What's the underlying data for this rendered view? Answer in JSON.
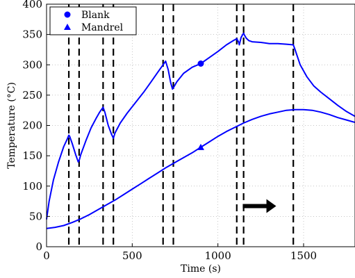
{
  "chart_data": {
    "type": "line",
    "title": "",
    "xlabel": "Time (s)",
    "ylabel": "Temperature (°C)",
    "xlim": [
      0,
      1800
    ],
    "ylim": [
      0,
      400
    ],
    "xticks": [
      0,
      500,
      1000,
      1500
    ],
    "yticks": [
      0,
      50,
      100,
      150,
      200,
      250,
      300,
      350,
      400
    ],
    "grid": "dotted",
    "legend_position": "top-left",
    "line_color": "#0000ff",
    "series": [
      {
        "name": "Blank",
        "marker": "circle",
        "marker_at": [
          900,
          302
        ],
        "x": [
          0,
          15,
          40,
          70,
          100,
          120,
          130,
          135,
          150,
          170,
          185,
          190,
          200,
          230,
          260,
          290,
          310,
          330,
          340,
          360,
          380,
          390,
          400,
          430,
          470,
          520,
          570,
          610,
          650,
          680,
          695,
          710,
          725,
          735,
          740,
          760,
          800,
          850,
          900,
          950,
          1000,
          1050,
          1090,
          1110,
          1120,
          1125,
          1135,
          1145,
          1150,
          1155,
          1165,
          1180,
          1200,
          1250,
          1300,
          1350,
          1400,
          1440,
          1450,
          1480,
          1520,
          1560,
          1600,
          1650,
          1700,
          1750,
          1800
        ],
        "y": [
          45,
          75,
          110,
          140,
          165,
          177,
          184,
          182,
          170,
          152,
          140,
          142,
          152,
          175,
          196,
          212,
          222,
          230,
          222,
          200,
          185,
          179,
          188,
          204,
          220,
          238,
          256,
          272,
          288,
          300,
          306,
          292,
          270,
          260,
          262,
          272,
          286,
          296,
          302,
          312,
          322,
          333,
          340,
          343,
          338,
          333,
          345,
          350,
          352,
          349,
          344,
          340,
          338,
          337,
          335,
          335,
          334,
          333,
          325,
          300,
          280,
          265,
          255,
          244,
          233,
          223,
          215
        ]
      },
      {
        "name": "Mandrel",
        "marker": "triangle",
        "marker_at": [
          900,
          164
        ],
        "x": [
          0,
          50,
          100,
          150,
          200,
          250,
          300,
          350,
          400,
          450,
          500,
          550,
          600,
          650,
          700,
          750,
          800,
          850,
          900,
          950,
          1000,
          1050,
          1100,
          1150,
          1200,
          1250,
          1300,
          1350,
          1400,
          1450,
          1500,
          1550,
          1600,
          1650,
          1700,
          1750,
          1800
        ],
        "y": [
          30,
          32,
          35,
          40,
          46,
          53,
          61,
          69,
          77,
          86,
          95,
          104,
          113,
          122,
          131,
          139,
          147,
          155,
          164,
          173,
          182,
          190,
          197,
          204,
          210,
          215,
          219,
          222,
          225,
          226,
          226,
          225,
          222,
          218,
          213,
          209,
          205
        ]
      }
    ],
    "annotations": {
      "dashed_lines_x": [
        130,
        190,
        330,
        390,
        680,
        740,
        1110,
        1150,
        1440
      ],
      "arrow": {
        "from": [
          1145,
          67
        ],
        "to": [
          1340,
          67
        ],
        "direction": "right"
      }
    }
  }
}
